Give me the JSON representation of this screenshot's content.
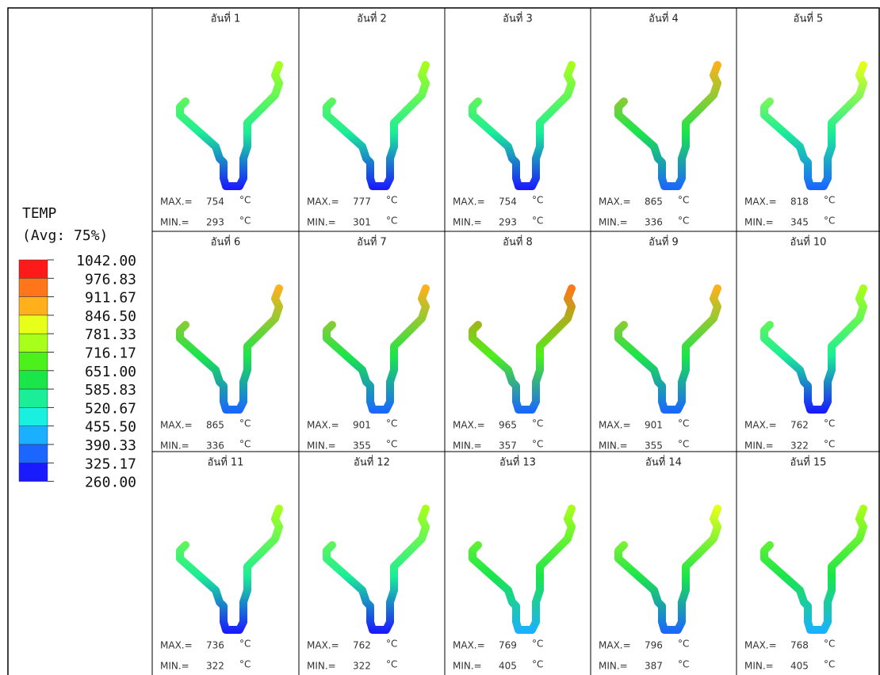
{
  "legend": {
    "title": "TEMP",
    "subtitle": "(Avg: 75%)",
    "values": [
      "1042.00",
      "976.83",
      "911.67",
      "846.50",
      "781.33",
      "716.17",
      "651.00",
      "585.83",
      "520.67",
      "455.50",
      "390.33",
      "325.17",
      "260.00"
    ],
    "colors": [
      "#ff1a1a",
      "#ff761a",
      "#ffb01a",
      "#e8ff1a",
      "#a8ff1a",
      "#4cf01a",
      "#1ae64a",
      "#1aee96",
      "#1af0e0",
      "#1ab0ff",
      "#1a66ff",
      "#1a1aff"
    ]
  },
  "labels": {
    "max": "MAX.=",
    "min": "MIN.=",
    "unit": "°C"
  },
  "panels": [
    {
      "label": "อันที่ 1",
      "max": 754,
      "min": 293
    },
    {
      "label": "อันที่ 2",
      "max": 777,
      "min": 301
    },
    {
      "label": "อันที่ 3",
      "max": 754,
      "min": 293
    },
    {
      "label": "อันที่ 4",
      "max": 865,
      "min": 336
    },
    {
      "label": "อันที่ 5",
      "max": 818,
      "min": 345
    },
    {
      "label": "อันที่ 6",
      "max": 865,
      "min": 336
    },
    {
      "label": "อันที่ 7",
      "max": 901,
      "min": 355
    },
    {
      "label": "อันที่ 8",
      "max": 965,
      "min": 357
    },
    {
      "label": "อันที่ 9",
      "max": 901,
      "min": 355
    },
    {
      "label": "อันที่ 10",
      "max": 762,
      "min": 322
    },
    {
      "label": "อันที่ 11",
      "max": 736,
      "min": 322
    },
    {
      "label": "อันที่ 12",
      "max": 762,
      "min": 322
    },
    {
      "label": "อันที่ 13",
      "max": 769,
      "min": 405
    },
    {
      "label": "อันที่ 14",
      "max": 796,
      "min": 387
    },
    {
      "label": "อันที่ 15",
      "max": 768,
      "min": 405
    }
  ]
}
